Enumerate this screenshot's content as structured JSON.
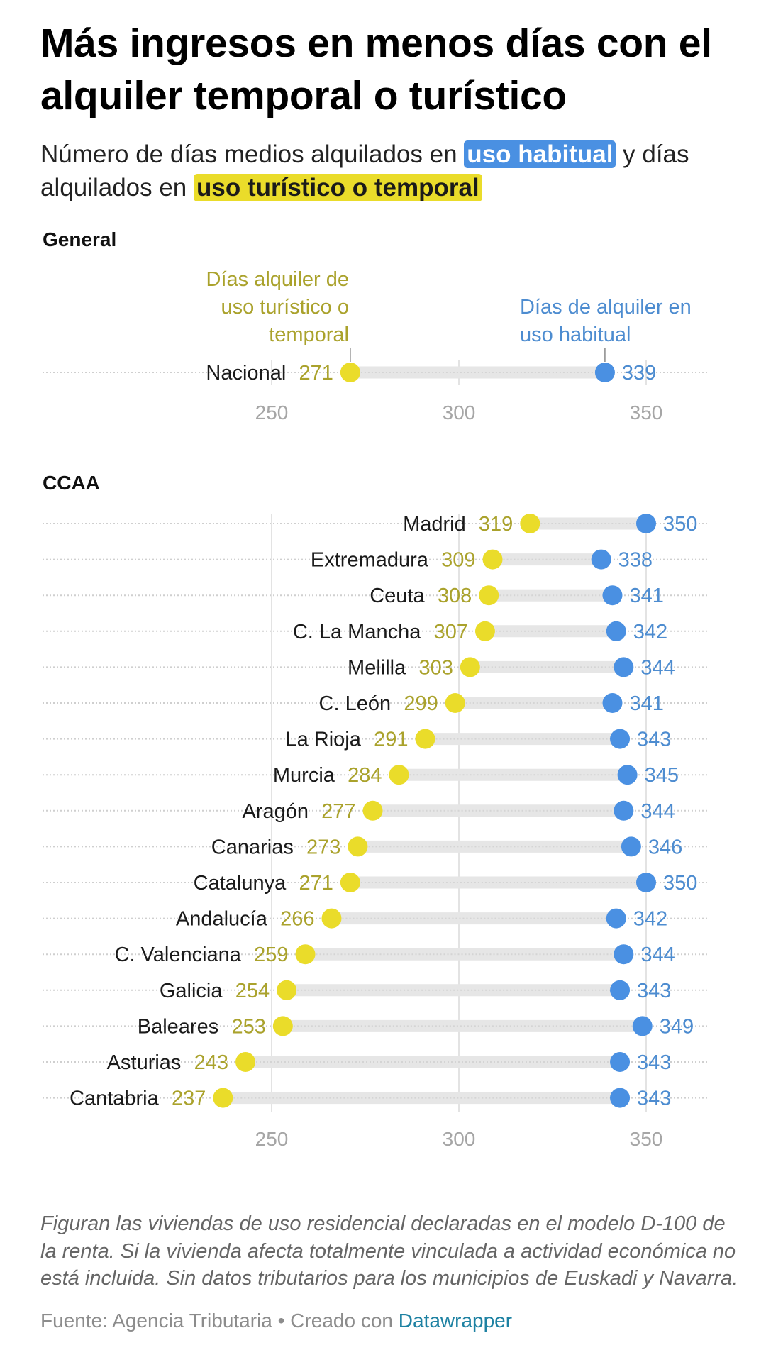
{
  "header": {
    "title": "Más ingresos en menos días con el alquiler temporal o turístico",
    "subtitle_pre": "Número de días medios alquilados en ",
    "subtitle_hl1": "uso habitual",
    "subtitle_mid": " y días alquilados en ",
    "subtitle_hl2": "uso turístico o temporal"
  },
  "colors": {
    "habitual": "#4a90e2",
    "turistico": "#eadc2a",
    "habitual_text": "#4d8cd0",
    "turistico_text": "#aaa22c",
    "range_bar": "#e6e6e6",
    "grid": "#e3e3e3",
    "axis_text": "#a6a6a6"
  },
  "annotations": {
    "turistico": [
      "Días alquiler de",
      "uso turístico o",
      "temporal"
    ],
    "habitual": [
      "Días de alquiler en",
      "uso habitual"
    ]
  },
  "chart_data": [
    {
      "type": "dot-range",
      "title": "General",
      "series": [
        {
          "name": "Días alquiler de uso turístico o temporal",
          "key": "turistico"
        },
        {
          "name": "Días de alquiler en uso habitual",
          "key": "habitual"
        }
      ],
      "rows": [
        {
          "label": "Nacional",
          "turistico": 271,
          "habitual": 339
        }
      ],
      "xticks": [
        250,
        300,
        350
      ],
      "xlim": [
        225,
        362
      ],
      "grid": true
    },
    {
      "type": "dot-range",
      "title": "CCAA",
      "series": [
        {
          "name": "Días alquiler de uso turístico o temporal",
          "key": "turistico"
        },
        {
          "name": "Días de alquiler en uso habitual",
          "key": "habitual"
        }
      ],
      "rows": [
        {
          "label": "Madrid",
          "turistico": 319,
          "habitual": 350
        },
        {
          "label": "Extremadura",
          "turistico": 309,
          "habitual": 338
        },
        {
          "label": "Ceuta",
          "turistico": 308,
          "habitual": 341
        },
        {
          "label": "C. La Mancha",
          "turistico": 307,
          "habitual": 342
        },
        {
          "label": "Melilla",
          "turistico": 303,
          "habitual": 344
        },
        {
          "label": "C. León",
          "turistico": 299,
          "habitual": 341
        },
        {
          "label": "La Rioja",
          "turistico": 291,
          "habitual": 343
        },
        {
          "label": "Murcia",
          "turistico": 284,
          "habitual": 345
        },
        {
          "label": "Aragón",
          "turistico": 277,
          "habitual": 344
        },
        {
          "label": "Canarias",
          "turistico": 273,
          "habitual": 346
        },
        {
          "label": "Catalunya",
          "turistico": 271,
          "habitual": 350
        },
        {
          "label": "Andalucía",
          "turistico": 266,
          "habitual": 342
        },
        {
          "label": "C. Valenciana",
          "turistico": 259,
          "habitual": 344
        },
        {
          "label": "Galicia",
          "turistico": 254,
          "habitual": 343
        },
        {
          "label": "Baleares",
          "turistico": 253,
          "habitual": 349
        },
        {
          "label": "Asturias",
          "turistico": 243,
          "habitual": 343
        },
        {
          "label": "Cantabria",
          "turistico": 237,
          "habitual": 343
        }
      ],
      "xticks": [
        250,
        300,
        350
      ],
      "xlim": [
        225,
        362
      ],
      "grid": true
    }
  ],
  "footer": {
    "notes": "Figuran las viviendas de uso residencial declaradas en el modelo D-100 de la renta. Si la vivienda afecta totalmente vinculada a actividad económica no está incluida. Sin datos tributarios para los municipios de Euskadi y Navarra.",
    "source_prefix": "Fuente: Agencia Tributaria • Creado con ",
    "source_link": "Datawrapper"
  }
}
